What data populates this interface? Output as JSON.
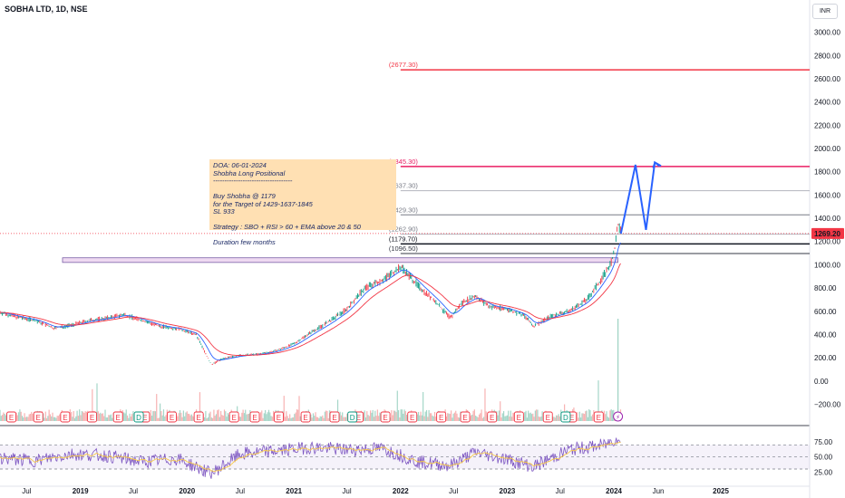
{
  "header": {
    "title": "SOBHA LTD, 1D, NSE",
    "currency_button": "INR"
  },
  "note": {
    "lines": [
      "DOA: 06-01-2024",
      "Shobha Long Positional",
      "-----------------------------------",
      "",
      "Buy Shobha @ 1179",
      "for the Target of 1429-1637-1845",
      "SL 933",
      "",
      "Strategy : SBO + RSI > 60 + EMA above 20 & 50",
      "",
      "Duration few months"
    ]
  },
  "chart_data": {
    "type": "line",
    "price_axis": {
      "ticks": [
        -200,
        0,
        200,
        400,
        600,
        800,
        1000,
        1200,
        1400,
        1600,
        1800,
        2000,
        2200,
        2400,
        2600,
        2800,
        3000
      ],
      "tick_labels": [
        "−200.00",
        "0.00",
        "200.00",
        "400.00",
        "600.00",
        "800.00",
        "1000.00",
        "1200.00",
        "1400.00",
        "1600.00",
        "1800.00",
        "2000.00",
        "2200.00",
        "2400.00",
        "2600.00",
        "2800.00",
        "3000.00"
      ],
      "range": [
        -290,
        3200
      ]
    },
    "time_axis": {
      "ticks": [
        "2018-07-01",
        "2019-01-01",
        "2019-07-01",
        "2020-01-01",
        "2020-07-01",
        "2021-01-01",
        "2021-07-01",
        "2022-01-01",
        "2022-07-01",
        "2023-01-01",
        "2023-07-01",
        "2024-01-01",
        "2024-06-01",
        "2025-01-01"
      ],
      "tick_labels": [
        "Jul",
        "2019",
        "Jul",
        "2020",
        "Jul",
        "2021",
        "Jul",
        "2022",
        "Jul",
        "2023",
        "Jul",
        "2024",
        "Jun",
        "2025"
      ],
      "range": [
        "2018-04-01",
        "2025-11-01"
      ]
    },
    "current_price": {
      "value": 1269.2,
      "label": "1269.20",
      "color": "#f23645"
    },
    "levels": [
      {
        "value": 2677.3,
        "label": "(2677.30)",
        "color": "#f23645",
        "start": "2022-01-01"
      },
      {
        "value": 1845.3,
        "label": "(1845.30)",
        "color": "#e91e63",
        "start": "2022-01-01"
      },
      {
        "value": 1637.3,
        "label": "(1637.30)",
        "color": "#b2b5be",
        "start": "2022-01-01"
      },
      {
        "value": 1429.3,
        "label": "(1429.30)",
        "color": "#787b86",
        "start": "2022-01-01"
      },
      {
        "value": 1262.9,
        "label": "(1262.90)",
        "color": "#b2b5be",
        "start": "2022-01-01"
      },
      {
        "value": 1179.7,
        "label": "(1179.70)",
        "color": "#131722",
        "start": "2022-01-01"
      },
      {
        "value": 1096.5,
        "label": "(1096.50)",
        "color": "#363a45",
        "start": "2022-01-01"
      }
    ],
    "breakout_zone": {
      "from": "2018-11-01",
      "to": "2024-01-15",
      "low": 1020,
      "high": 1060,
      "color": "#ce93d8"
    },
    "price_series": {
      "name": "",
      "color": "#131722",
      "points": [
        [
          "2018-04-01",
          590
        ],
        [
          "2018-06-01",
          550
        ],
        [
          "2018-08-01",
          520
        ],
        [
          "2018-10-01",
          455
        ],
        [
          "2018-12-01",
          480
        ],
        [
          "2019-02-01",
          520
        ],
        [
          "2019-04-01",
          540
        ],
        [
          "2019-06-01",
          570
        ],
        [
          "2019-08-01",
          520
        ],
        [
          "2019-10-01",
          470
        ],
        [
          "2019-12-01",
          450
        ],
        [
          "2020-02-01",
          400
        ],
        [
          "2020-03-24",
          140
        ],
        [
          "2020-05-01",
          190
        ],
        [
          "2020-07-01",
          220
        ],
        [
          "2020-09-01",
          230
        ],
        [
          "2020-11-01",
          260
        ],
        [
          "2021-01-01",
          320
        ],
        [
          "2021-03-01",
          420
        ],
        [
          "2021-05-01",
          510
        ],
        [
          "2021-07-01",
          620
        ],
        [
          "2021-09-01",
          800
        ],
        [
          "2021-11-01",
          870
        ],
        [
          "2021-12-15",
          950
        ],
        [
          "2022-01-05",
          980
        ],
        [
          "2022-03-01",
          820
        ],
        [
          "2022-05-01",
          680
        ],
        [
          "2022-06-20",
          540
        ],
        [
          "2022-08-01",
          680
        ],
        [
          "2022-09-15",
          730
        ],
        [
          "2022-11-01",
          640
        ],
        [
          "2023-01-01",
          620
        ],
        [
          "2023-03-01",
          560
        ],
        [
          "2023-04-01",
          470
        ],
        [
          "2023-06-01",
          560
        ],
        [
          "2023-08-01",
          600
        ],
        [
          "2023-10-01",
          700
        ],
        [
          "2023-11-15",
          860
        ],
        [
          "2023-12-20",
          1000
        ],
        [
          "2024-01-05",
          1150
        ],
        [
          "2024-01-15",
          1350
        ],
        [
          "2024-01-25",
          1269
        ]
      ]
    },
    "projection": {
      "color": "#2962ff",
      "points": [
        [
          "2024-01-25",
          1269
        ],
        [
          "2024-03-15",
          1860
        ],
        [
          "2024-04-20",
          1300
        ],
        [
          "2024-05-20",
          1880
        ],
        [
          "2024-06-10",
          1850
        ]
      ]
    },
    "rsi_axis": {
      "ticks": [
        25,
        50,
        75
      ],
      "tick_labels": [
        "25.00",
        "50.00",
        "75.00"
      ],
      "range": [
        12,
        90
      ],
      "band": [
        30,
        70
      ]
    },
    "rsi_series": {
      "color": "#7e57c2",
      "points": [
        [
          "2018-04-01",
          48
        ],
        [
          "2018-08-01",
          44
        ],
        [
          "2018-12-01",
          55
        ],
        [
          "2019-04-01",
          52
        ],
        [
          "2019-08-01",
          42
        ],
        [
          "2019-12-01",
          47
        ],
        [
          "2020-03-24",
          22
        ],
        [
          "2020-07-01",
          55
        ],
        [
          "2020-11-01",
          60
        ],
        [
          "2021-03-01",
          66
        ],
        [
          "2021-07-01",
          62
        ],
        [
          "2021-11-01",
          64
        ],
        [
          "2022-03-01",
          42
        ],
        [
          "2022-06-20",
          36
        ],
        [
          "2022-09-15",
          58
        ],
        [
          "2023-01-01",
          46
        ],
        [
          "2023-04-01",
          34
        ],
        [
          "2023-08-01",
          62
        ],
        [
          "2023-12-01",
          70
        ],
        [
          "2024-01-15",
          82
        ],
        [
          "2024-01-25",
          66
        ]
      ]
    },
    "event_markers": {
      "earnings_dates": [
        "2018-05-10",
        "2018-08-10",
        "2018-11-10",
        "2019-02-10",
        "2019-05-10",
        "2019-08-10",
        "2019-11-10",
        "2020-02-10",
        "2020-06-10",
        "2020-08-20",
        "2020-11-10",
        "2021-02-10",
        "2021-05-20",
        "2021-08-10",
        "2021-11-10",
        "2022-02-10",
        "2022-05-20",
        "2022-08-10",
        "2022-11-10",
        "2023-02-10",
        "2023-05-20",
        "2023-08-10",
        "2023-11-10"
      ],
      "earnings_glyph": "E",
      "split_dates": [
        "2019-07-20",
        "2021-07-20",
        "2023-07-20"
      ],
      "split_glyph": "D",
      "lightning_date": "2024-01-15",
      "lightning_glyph": "⚡"
    }
  }
}
